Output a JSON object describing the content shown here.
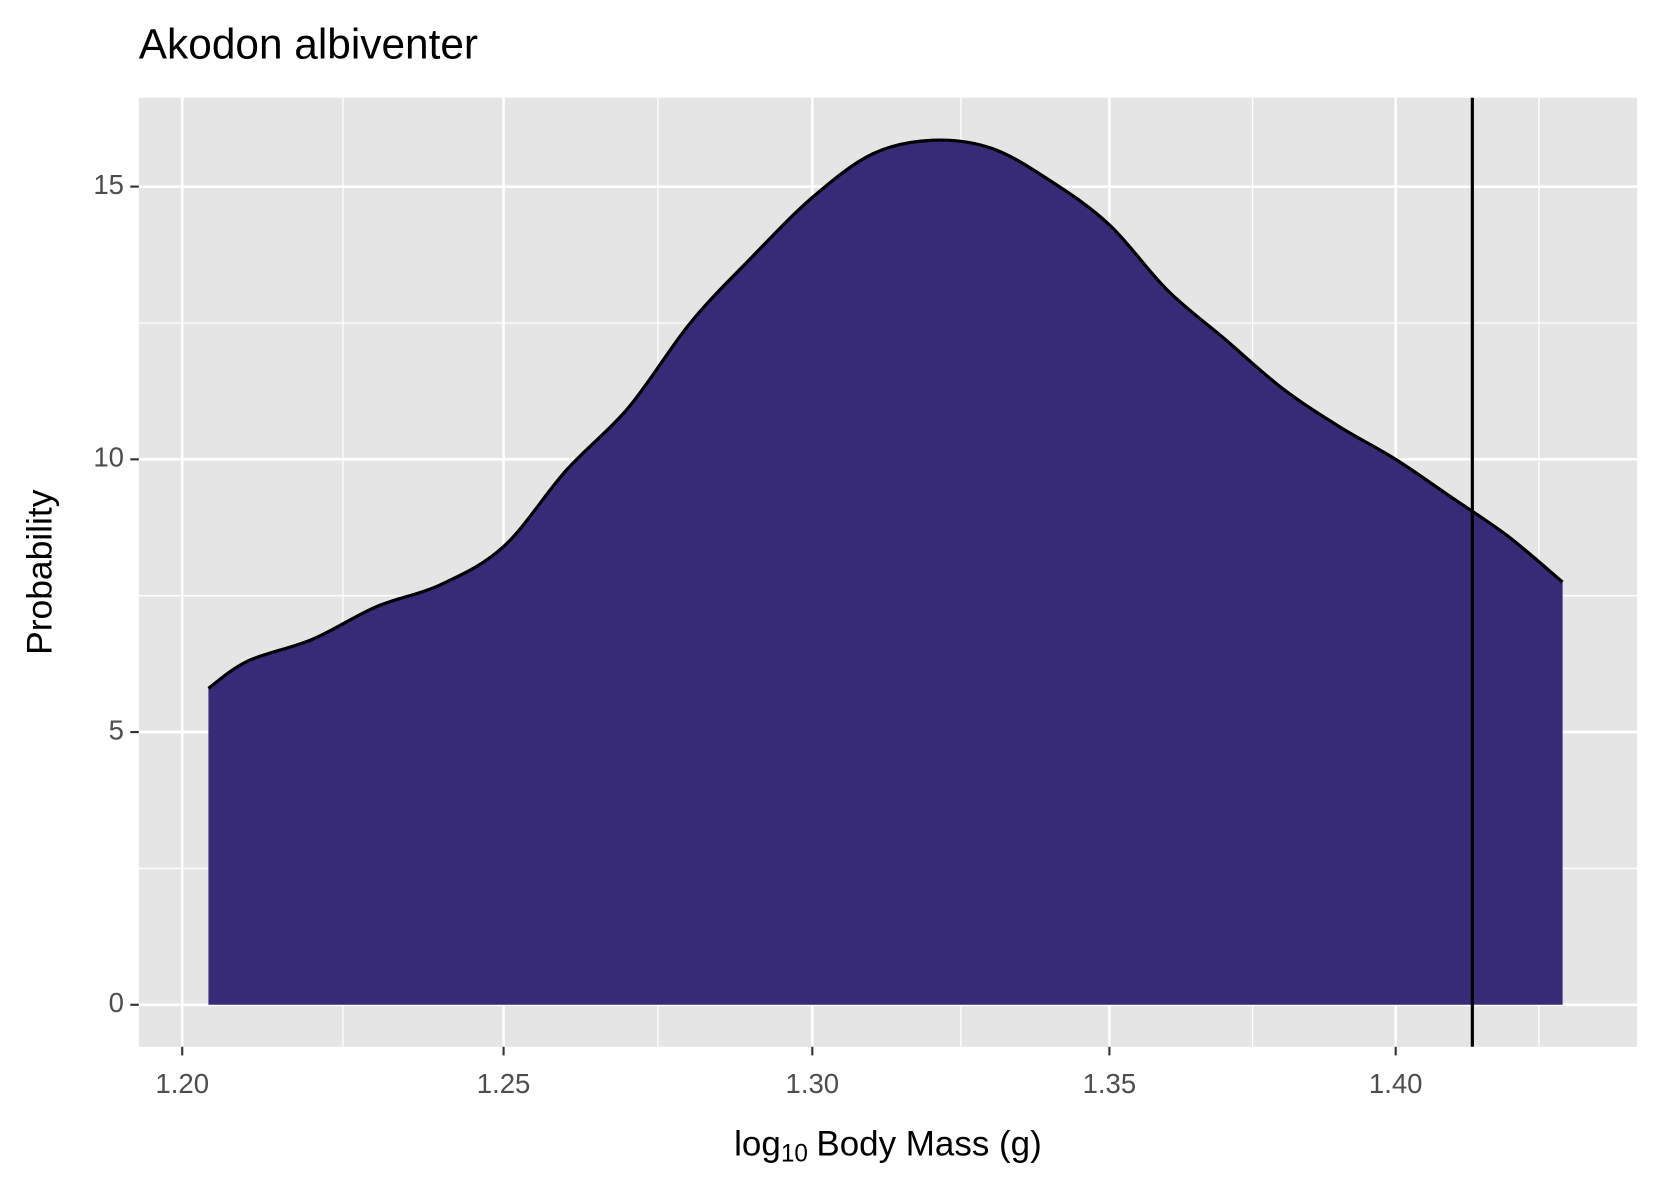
{
  "chart_data": {
    "type": "density",
    "title": "Akodon albiventer",
    "x_label": [
      "log",
      "10",
      "Body Mass (g)"
    ],
    "y_label": "Probability",
    "x": [
      1.204,
      1.21,
      1.22,
      1.23,
      1.24,
      1.25,
      1.26,
      1.27,
      1.28,
      1.29,
      1.3,
      1.31,
      1.32,
      1.33,
      1.34,
      1.35,
      1.36,
      1.37,
      1.38,
      1.39,
      1.4,
      1.41,
      1.42,
      1.43
    ],
    "values": [
      5.8,
      6.3,
      6.7,
      7.3,
      7.7,
      8.4,
      9.8,
      10.95,
      12.5,
      13.7,
      14.8,
      15.6,
      15.85,
      15.7,
      15.1,
      14.3,
      13.1,
      12.2,
      11.3,
      10.6,
      10.0,
      9.3,
      8.6,
      7.75
    ],
    "color": "#372a77",
    "vline": 1.4137,
    "xlog": true,
    "xlim": [
      1.1934,
      1.4436
    ],
    "ylim": [
      -0.77,
      16.63
    ],
    "xticks": [
      {
        "value": 1.2,
        "label": "1.20"
      },
      {
        "value": 1.25,
        "label": "1.25"
      },
      {
        "value": 1.3,
        "label": "1.30"
      },
      {
        "value": 1.35,
        "label": "1.35"
      },
      {
        "value": 1.4,
        "label": "1.40"
      }
    ],
    "yticks": [
      0,
      5,
      10,
      15
    ],
    "grid": true
  }
}
